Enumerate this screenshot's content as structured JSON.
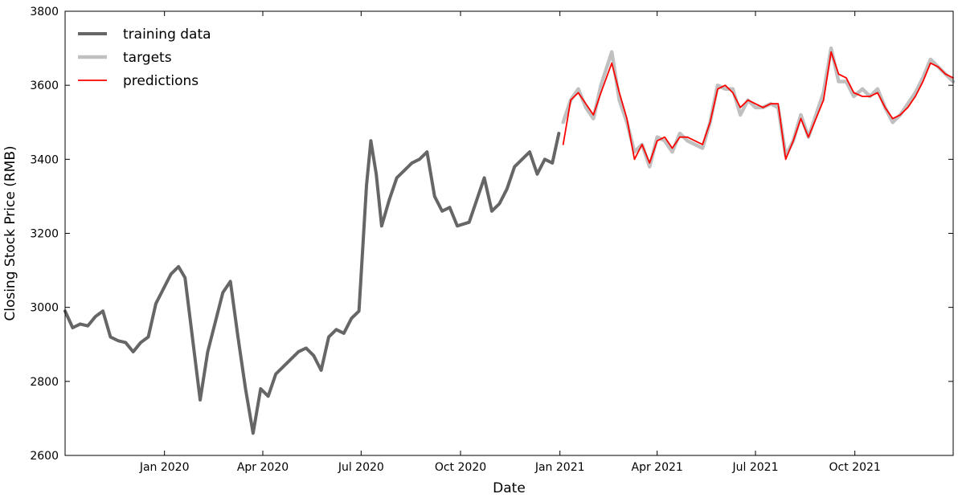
{
  "chart_data": {
    "type": "line",
    "xlabel": "Date",
    "ylabel": "Closing Stock Price (RMB)",
    "xlim": [
      "2019-10-01",
      "2021-12-31"
    ],
    "ylim": [
      2600,
      3800
    ],
    "x_ticks": [
      {
        "date": "2020-01-01",
        "label": "Jan 2020"
      },
      {
        "date": "2020-04-01",
        "label": "Apr 2020"
      },
      {
        "date": "2020-07-01",
        "label": "Jul 2020"
      },
      {
        "date": "2020-10-01",
        "label": "Oct 2020"
      },
      {
        "date": "2021-01-01",
        "label": "Jan 2021"
      },
      {
        "date": "2021-04-01",
        "label": "Apr 2021"
      },
      {
        "date": "2021-07-01",
        "label": "Jul 2021"
      },
      {
        "date": "2021-10-01",
        "label": "Oct 2021"
      }
    ],
    "y_ticks": [
      2600,
      2800,
      3000,
      3200,
      3400,
      3600,
      3800
    ],
    "grid": false,
    "legend_position": "top-left",
    "series": [
      {
        "name": "training data",
        "color": "#666666",
        "points": [
          [
            "2019-10-01",
            2990
          ],
          [
            "2019-10-08",
            2945
          ],
          [
            "2019-10-15",
            2955
          ],
          [
            "2019-10-22",
            2950
          ],
          [
            "2019-10-29",
            2975
          ],
          [
            "2019-11-05",
            2990
          ],
          [
            "2019-11-12",
            2920
          ],
          [
            "2019-11-19",
            2910
          ],
          [
            "2019-11-26",
            2905
          ],
          [
            "2019-12-03",
            2880
          ],
          [
            "2019-12-10",
            2905
          ],
          [
            "2019-12-17",
            2920
          ],
          [
            "2019-12-24",
            3010
          ],
          [
            "2019-12-31",
            3050
          ],
          [
            "2020-01-07",
            3090
          ],
          [
            "2020-01-14",
            3110
          ],
          [
            "2020-01-20",
            3080
          ],
          [
            "2020-02-03",
            2750
          ],
          [
            "2020-02-10",
            2880
          ],
          [
            "2020-02-17",
            2960
          ],
          [
            "2020-02-24",
            3040
          ],
          [
            "2020-03-02",
            3070
          ],
          [
            "2020-03-09",
            2920
          ],
          [
            "2020-03-16",
            2780
          ],
          [
            "2020-03-23",
            2660
          ],
          [
            "2020-03-30",
            2780
          ],
          [
            "2020-04-06",
            2760
          ],
          [
            "2020-04-13",
            2820
          ],
          [
            "2020-04-20",
            2840
          ],
          [
            "2020-04-27",
            2860
          ],
          [
            "2020-05-04",
            2880
          ],
          [
            "2020-05-11",
            2890
          ],
          [
            "2020-05-18",
            2870
          ],
          [
            "2020-05-25",
            2830
          ],
          [
            "2020-06-01",
            2920
          ],
          [
            "2020-06-08",
            2940
          ],
          [
            "2020-06-15",
            2930
          ],
          [
            "2020-06-22",
            2970
          ],
          [
            "2020-06-29",
            2990
          ],
          [
            "2020-07-06",
            3330
          ],
          [
            "2020-07-10",
            3450
          ],
          [
            "2020-07-15",
            3360
          ],
          [
            "2020-07-20",
            3220
          ],
          [
            "2020-07-27",
            3290
          ],
          [
            "2020-08-03",
            3350
          ],
          [
            "2020-08-10",
            3370
          ],
          [
            "2020-08-17",
            3390
          ],
          [
            "2020-08-24",
            3400
          ],
          [
            "2020-08-31",
            3420
          ],
          [
            "2020-09-07",
            3300
          ],
          [
            "2020-09-14",
            3260
          ],
          [
            "2020-09-21",
            3270
          ],
          [
            "2020-09-28",
            3220
          ],
          [
            "2020-10-09",
            3230
          ],
          [
            "2020-10-16",
            3290
          ],
          [
            "2020-10-23",
            3350
          ],
          [
            "2020-10-30",
            3260
          ],
          [
            "2020-11-06",
            3280
          ],
          [
            "2020-11-13",
            3320
          ],
          [
            "2020-11-20",
            3380
          ],
          [
            "2020-11-27",
            3400
          ],
          [
            "2020-12-04",
            3420
          ],
          [
            "2020-12-11",
            3360
          ],
          [
            "2020-12-18",
            3400
          ],
          [
            "2020-12-25",
            3390
          ],
          [
            "2020-12-31",
            3470
          ]
        ]
      },
      {
        "name": "targets",
        "color": "#c0c0c0",
        "points": [
          [
            "2021-01-04",
            3500
          ],
          [
            "2021-01-11",
            3560
          ],
          [
            "2021-01-18",
            3590
          ],
          [
            "2021-01-25",
            3540
          ],
          [
            "2021-02-01",
            3510
          ],
          [
            "2021-02-08",
            3600
          ],
          [
            "2021-02-18",
            3690
          ],
          [
            "2021-02-25",
            3560
          ],
          [
            "2021-03-04",
            3500
          ],
          [
            "2021-03-11",
            3420
          ],
          [
            "2021-03-18",
            3440
          ],
          [
            "2021-03-25",
            3380
          ],
          [
            "2021-04-01",
            3460
          ],
          [
            "2021-04-08",
            3450
          ],
          [
            "2021-04-15",
            3420
          ],
          [
            "2021-04-22",
            3470
          ],
          [
            "2021-04-29",
            3450
          ],
          [
            "2021-05-06",
            3440
          ],
          [
            "2021-05-13",
            3430
          ],
          [
            "2021-05-20",
            3500
          ],
          [
            "2021-05-27",
            3600
          ],
          [
            "2021-06-03",
            3590
          ],
          [
            "2021-06-10",
            3590
          ],
          [
            "2021-06-17",
            3520
          ],
          [
            "2021-06-24",
            3560
          ],
          [
            "2021-07-01",
            3540
          ],
          [
            "2021-07-08",
            3540
          ],
          [
            "2021-07-15",
            3550
          ],
          [
            "2021-07-22",
            3540
          ],
          [
            "2021-07-29",
            3410
          ],
          [
            "2021-08-05",
            3450
          ],
          [
            "2021-08-12",
            3520
          ],
          [
            "2021-08-19",
            3460
          ],
          [
            "2021-08-26",
            3520
          ],
          [
            "2021-09-02",
            3580
          ],
          [
            "2021-09-09",
            3700
          ],
          [
            "2021-09-16",
            3610
          ],
          [
            "2021-09-23",
            3610
          ],
          [
            "2021-09-30",
            3570
          ],
          [
            "2021-10-08",
            3590
          ],
          [
            "2021-10-15",
            3570
          ],
          [
            "2021-10-22",
            3590
          ],
          [
            "2021-10-29",
            3540
          ],
          [
            "2021-11-05",
            3500
          ],
          [
            "2021-11-12",
            3520
          ],
          [
            "2021-11-19",
            3550
          ],
          [
            "2021-11-26",
            3580
          ],
          [
            "2021-12-03",
            3620
          ],
          [
            "2021-12-10",
            3670
          ],
          [
            "2021-12-17",
            3650
          ],
          [
            "2021-12-24",
            3630
          ],
          [
            "2021-12-31",
            3610
          ]
        ]
      },
      {
        "name": "predictions",
        "color": "#ff0000",
        "points": [
          [
            "2021-01-04",
            3440
          ],
          [
            "2021-01-11",
            3560
          ],
          [
            "2021-01-18",
            3580
          ],
          [
            "2021-01-25",
            3550
          ],
          [
            "2021-02-01",
            3520
          ],
          [
            "2021-02-08",
            3580
          ],
          [
            "2021-02-18",
            3660
          ],
          [
            "2021-02-25",
            3580
          ],
          [
            "2021-03-04",
            3510
          ],
          [
            "2021-03-11",
            3400
          ],
          [
            "2021-03-18",
            3440
          ],
          [
            "2021-03-25",
            3390
          ],
          [
            "2021-04-01",
            3450
          ],
          [
            "2021-04-08",
            3460
          ],
          [
            "2021-04-15",
            3430
          ],
          [
            "2021-04-22",
            3460
          ],
          [
            "2021-04-29",
            3460
          ],
          [
            "2021-05-06",
            3450
          ],
          [
            "2021-05-13",
            3440
          ],
          [
            "2021-05-20",
            3500
          ],
          [
            "2021-05-27",
            3590
          ],
          [
            "2021-06-03",
            3600
          ],
          [
            "2021-06-10",
            3580
          ],
          [
            "2021-06-17",
            3540
          ],
          [
            "2021-06-24",
            3560
          ],
          [
            "2021-07-01",
            3550
          ],
          [
            "2021-07-08",
            3540
          ],
          [
            "2021-07-15",
            3550
          ],
          [
            "2021-07-22",
            3550
          ],
          [
            "2021-07-29",
            3400
          ],
          [
            "2021-08-05",
            3450
          ],
          [
            "2021-08-12",
            3510
          ],
          [
            "2021-08-19",
            3460
          ],
          [
            "2021-08-26",
            3510
          ],
          [
            "2021-09-02",
            3560
          ],
          [
            "2021-09-09",
            3690
          ],
          [
            "2021-09-16",
            3630
          ],
          [
            "2021-09-23",
            3620
          ],
          [
            "2021-09-30",
            3580
          ],
          [
            "2021-10-08",
            3570
          ],
          [
            "2021-10-15",
            3570
          ],
          [
            "2021-10-22",
            3580
          ],
          [
            "2021-10-29",
            3540
          ],
          [
            "2021-11-05",
            3510
          ],
          [
            "2021-11-12",
            3520
          ],
          [
            "2021-11-19",
            3540
          ],
          [
            "2021-11-26",
            3570
          ],
          [
            "2021-12-03",
            3610
          ],
          [
            "2021-12-10",
            3660
          ],
          [
            "2021-12-17",
            3650
          ],
          [
            "2021-12-24",
            3630
          ],
          [
            "2021-12-31",
            3620
          ]
        ]
      }
    ]
  }
}
